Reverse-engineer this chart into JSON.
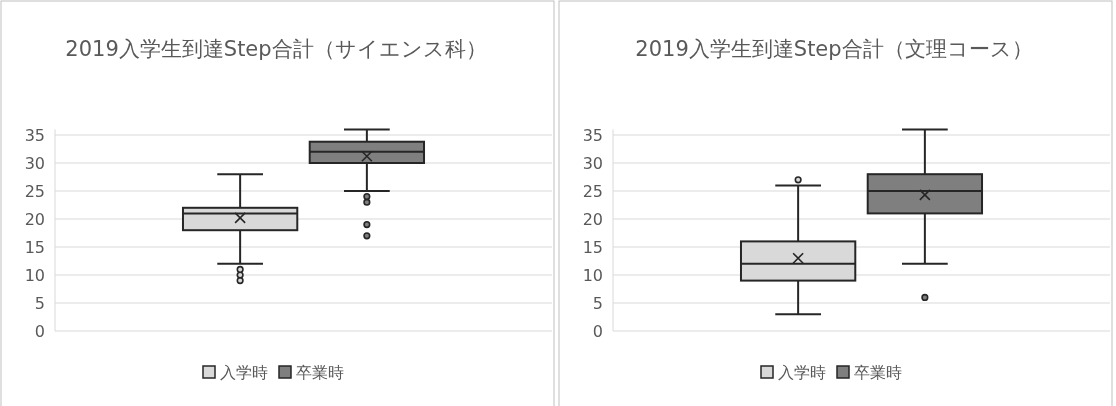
{
  "chart_data": [
    {
      "type": "box",
      "title": "2019入学生到達Step合計（サイエンス科）",
      "categories": [
        null
      ],
      "ylim": [
        0,
        36
      ],
      "yticks": [
        0,
        5,
        10,
        15,
        20,
        25,
        30,
        35
      ],
      "grid": "y",
      "legend": "bottom",
      "series": [
        {
          "name": "入学時",
          "color": "#d9d9d9",
          "boxes": [
            {
              "low": 12,
              "q1": 18,
              "median": 21,
              "q3": 22,
              "high": 28,
              "mean": 20.2,
              "outliers": [
                9,
                10,
                11
              ]
            }
          ]
        },
        {
          "name": "卒業時",
          "color": "#7f7f7f",
          "boxes": [
            {
              "low": 25,
              "q1": 30,
              "median": 32,
              "q3": 33.8,
              "high": 36,
              "mean": 31.2,
              "outliers": [
                17,
                19,
                23,
                24
              ]
            }
          ]
        }
      ]
    },
    {
      "type": "box",
      "title": "2019入学生到達Step合計（文理コース）",
      "categories": [
        null
      ],
      "ylim": [
        0,
        36
      ],
      "yticks": [
        0,
        5,
        10,
        15,
        20,
        25,
        30,
        35
      ],
      "grid": "y",
      "legend": "bottom",
      "series": [
        {
          "name": "入学時",
          "color": "#d9d9d9",
          "boxes": [
            {
              "low": 3,
              "q1": 9,
              "median": 12,
              "q3": 16,
              "high": 26,
              "mean": 13,
              "outliers": [
                27
              ]
            }
          ]
        },
        {
          "name": "卒業時",
          "color": "#7f7f7f",
          "boxes": [
            {
              "low": 12,
              "q1": 21,
              "median": 25,
              "q3": 28,
              "high": 36,
              "mean": 24.3,
              "outliers": [
                6
              ]
            }
          ]
        }
      ]
    }
  ]
}
